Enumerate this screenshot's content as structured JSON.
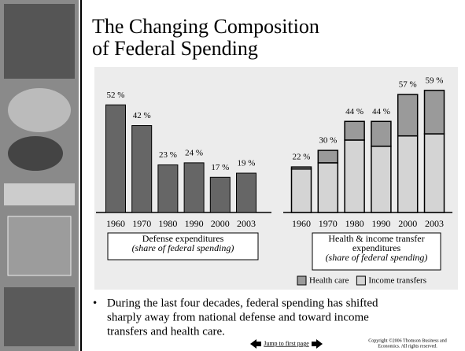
{
  "title_lines": [
    "The Changing Composition",
    "of Federal Spending"
  ],
  "chart_data": [
    {
      "type": "bar",
      "categories": [
        "1960",
        "1970",
        "1980",
        "1990",
        "2000",
        "2003"
      ],
      "values": [
        52,
        42,
        23,
        24,
        17,
        19
      ],
      "value_labels": [
        "52 %",
        "42 %",
        "23 %",
        "24 %",
        "17 %",
        "19 %"
      ],
      "color": "#666666",
      "caption": [
        "Defense expenditures",
        "(share of federal spending)"
      ]
    },
    {
      "type": "stacked_bar",
      "categories": [
        "1960",
        "1970",
        "1980",
        "1990",
        "2000",
        "2003"
      ],
      "series": [
        {
          "name": "Health care",
          "color": "#9a9a9a",
          "values": [
            1,
            6,
            9,
            12,
            20,
            21
          ]
        },
        {
          "name": "Income transfers",
          "color": "#d4d4d4",
          "values": [
            21,
            24,
            35,
            32,
            37,
            38
          ]
        }
      ],
      "totals": [
        22,
        30,
        44,
        44,
        57,
        59
      ],
      "total_labels": [
        "22 %",
        "30 %",
        "44 %",
        "44 %",
        "57 %",
        "59 %"
      ],
      "legend": "bottom",
      "caption": [
        "Health & income transfer",
        "expenditures",
        "(share of federal spending)"
      ]
    }
  ],
  "bullet_lines": [
    "During the last four decades, federal spending has shifted",
    "sharply away from national defense and toward income",
    "transfers and health care."
  ],
  "footer_link": "Jump to first page",
  "copyright_lines": [
    "Copyright ©2006  Thomson Business and",
    "Economics. All rights reserved."
  ]
}
